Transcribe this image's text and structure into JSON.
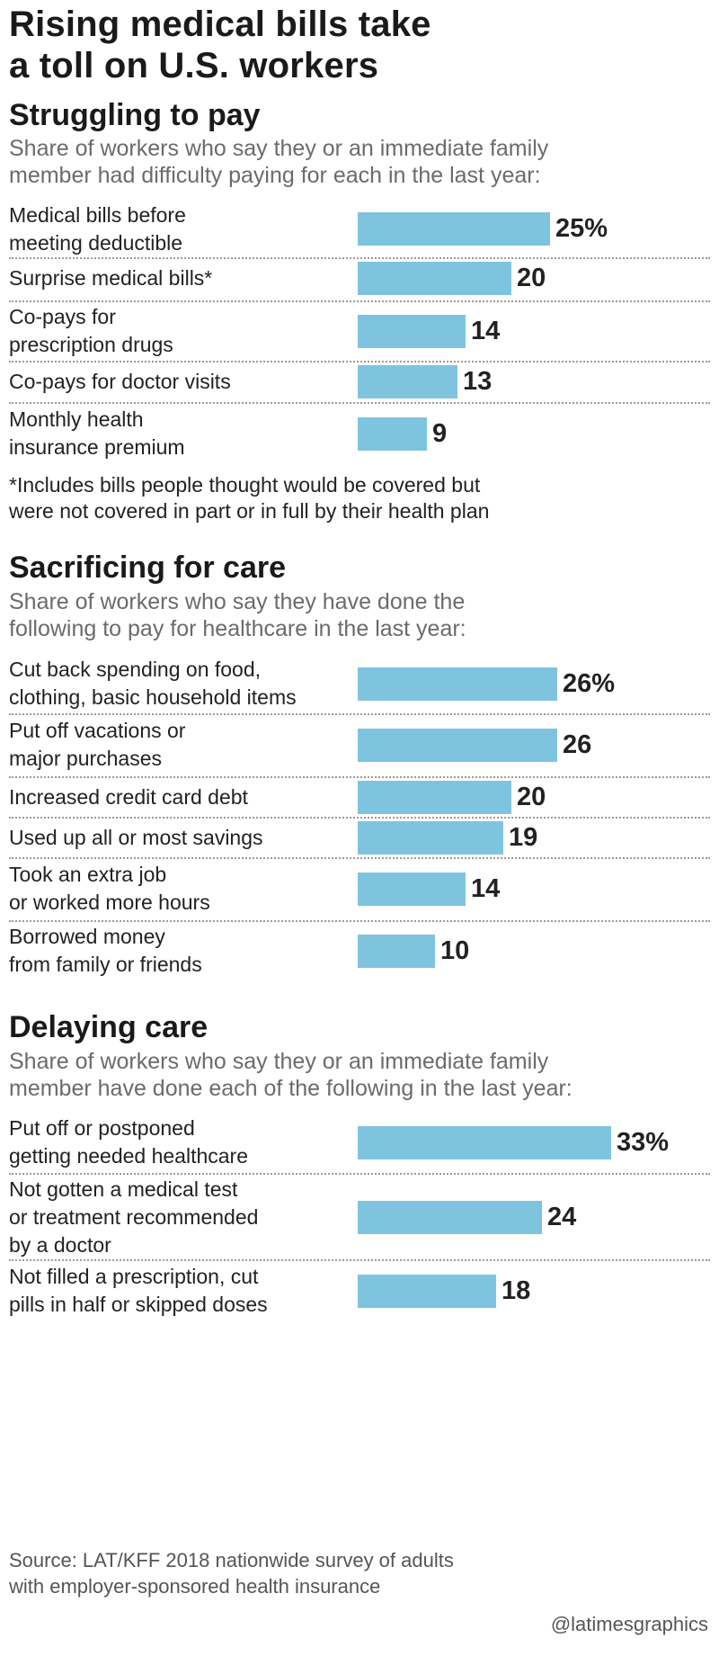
{
  "title_lines": [
    "Rising medical bills take",
    "a toll on U.S. workers"
  ],
  "colors": {
    "bar": "#7ec4df",
    "text": "#222222",
    "subtitle": "#6b6b6b",
    "divider": "#9a9a9a"
  },
  "chart_data": [
    {
      "type": "bar",
      "orientation": "horizontal",
      "title": "Struggling to pay",
      "subtitle_lines": [
        "Share of workers who say they or an immediate family",
        "member had difficulty paying for each in the last year:"
      ],
      "unit": "%",
      "xlim": [
        0,
        33
      ],
      "categories": [
        {
          "lines": [
            "Medical bills before",
            "meeting deductible"
          ],
          "value": 25,
          "display": "25%"
        },
        {
          "lines": [
            "Surprise medical bills*"
          ],
          "value": 20,
          "display": "20"
        },
        {
          "lines": [
            "Co-pays for",
            "prescription drugs"
          ],
          "value": 14,
          "display": "14"
        },
        {
          "lines": [
            "Co-pays for doctor visits"
          ],
          "value": 13,
          "display": "13"
        },
        {
          "lines": [
            "Monthly health",
            "insurance premium"
          ],
          "value": 9,
          "display": "9"
        }
      ],
      "note_lines": [
        "*Includes bills people thought would be covered but",
        "were not covered in part or in full by their health plan"
      ]
    },
    {
      "type": "bar",
      "orientation": "horizontal",
      "title": "Sacrificing for care",
      "subtitle_lines": [
        "Share of workers who say they have done the",
        "following to pay for healthcare in the last year:"
      ],
      "unit": "%",
      "xlim": [
        0,
        33
      ],
      "categories": [
        {
          "lines": [
            "Cut back spending on food,",
            "clothing, basic household items"
          ],
          "value": 26,
          "display": "26%"
        },
        {
          "lines": [
            "Put off vacations or",
            "major purchases"
          ],
          "value": 26,
          "display": "26"
        },
        {
          "lines": [
            "Increased credit card debt"
          ],
          "value": 20,
          "display": "20"
        },
        {
          "lines": [
            "Used up all or most savings"
          ],
          "value": 19,
          "display": "19"
        },
        {
          "lines": [
            "Took an extra job",
            "or worked more hours"
          ],
          "value": 14,
          "display": "14"
        },
        {
          "lines": [
            "Borrowed money",
            "from family or friends"
          ],
          "value": 10,
          "display": "10"
        }
      ]
    },
    {
      "type": "bar",
      "orientation": "horizontal",
      "title": "Delaying care",
      "subtitle_lines": [
        "Share of workers who say they or an immediate family",
        "member have done each of the following in the last year:"
      ],
      "unit": "%",
      "xlim": [
        0,
        33
      ],
      "categories": [
        {
          "lines": [
            "Put off or postponed",
            "getting needed healthcare"
          ],
          "value": 33,
          "display": "33%"
        },
        {
          "lines": [
            "Not gotten a medical test",
            "or treatment recommended",
            "by a doctor"
          ],
          "value": 24,
          "display": "24"
        },
        {
          "lines": [
            "Not filled a prescription, cut",
            "pills in half or skipped doses"
          ],
          "value": 18,
          "display": "18"
        }
      ]
    }
  ],
  "source_lines": [
    "Source: LAT/KFF 2018 nationwide survey of adults",
    "with employer-sponsored health insurance"
  ],
  "credit": "@latimesgraphics"
}
